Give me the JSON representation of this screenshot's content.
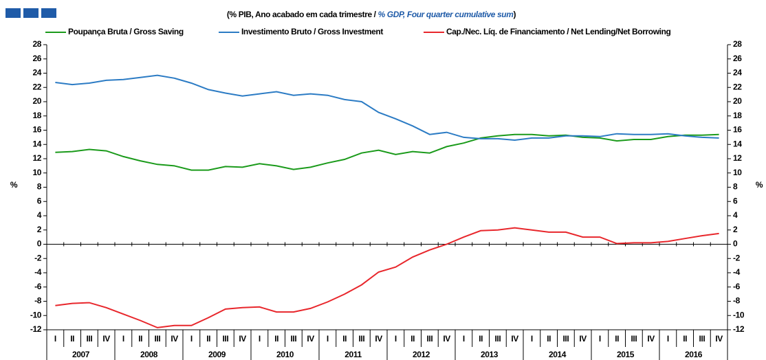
{
  "chart_data": {
    "type": "line",
    "title": "(% PIB, Ano acabado em cada trimestre / ",
    "title_en": "% GDP, Four quarter cumulative sum",
    "title_end": ")",
    "y_label": "%",
    "y2_label": "%",
    "categories": [
      "I",
      "II",
      "III",
      "IV",
      "I",
      "II",
      "III",
      "IV",
      "I",
      "II",
      "III",
      "IV",
      "I",
      "II",
      "III",
      "IV",
      "I",
      "II",
      "III",
      "IV",
      "I",
      "II",
      "III",
      "IV",
      "I",
      "II",
      "III",
      "IV",
      "I",
      "II",
      "III",
      "IV",
      "I",
      "II",
      "III",
      "IV",
      "I",
      "II",
      "III",
      "IV"
    ],
    "years": [
      "2007",
      "2008",
      "2009",
      "2010",
      "2011",
      "2012",
      "2013",
      "2014",
      "2015",
      "2016"
    ],
    "series": [
      {
        "name": "Poupança Bruta / Gross Saving",
        "color": "#1a9a1a",
        "values": [
          12.9,
          13.0,
          13.3,
          13.1,
          12.3,
          11.7,
          11.2,
          11.0,
          10.4,
          10.4,
          10.9,
          10.8,
          11.3,
          11.0,
          10.5,
          10.8,
          11.4,
          11.9,
          12.8,
          13.2,
          12.6,
          13.0,
          12.8,
          13.7,
          14.2,
          14.9,
          15.2,
          15.4,
          15.4,
          15.2,
          15.3,
          15.0,
          14.9,
          14.5,
          14.7,
          14.7,
          15.1,
          15.3,
          15.3,
          15.4
        ]
      },
      {
        "name": "Investimento Bruto / Gross Investment",
        "color": "#2b7bc4",
        "values": [
          22.7,
          22.4,
          22.6,
          23.0,
          23.1,
          23.4,
          23.7,
          23.3,
          22.6,
          21.7,
          21.2,
          20.8,
          21.1,
          21.4,
          20.9,
          21.1,
          20.9,
          20.3,
          20.0,
          18.5,
          17.6,
          16.6,
          15.4,
          15.7,
          15.0,
          14.8,
          14.8,
          14.6,
          14.9,
          14.9,
          15.2,
          15.2,
          15.1,
          15.5,
          15.4,
          15.4,
          15.5,
          15.2,
          15.0,
          14.9
        ]
      },
      {
        "name": "Cap./Nec. Líq. de Financiamento / Net Lending/Net Borrowing",
        "color": "#e8262b",
        "values": [
          -8.6,
          -8.3,
          -8.2,
          -8.9,
          -9.8,
          -10.7,
          -11.7,
          -11.4,
          -11.4,
          -10.3,
          -9.1,
          -8.9,
          -8.8,
          -9.5,
          -9.5,
          -9.0,
          -8.1,
          -7.0,
          -5.7,
          -3.9,
          -3.2,
          -1.8,
          -0.8,
          0.0,
          1.0,
          1.9,
          2.0,
          2.3,
          2.0,
          1.7,
          1.7,
          1.0,
          1.0,
          0.1,
          0.2,
          0.2,
          0.4,
          0.8,
          1.2,
          1.5
        ]
      }
    ],
    "ylim": [
      -12,
      28
    ],
    "yticks": [
      -12,
      -10,
      -8,
      -6,
      -4,
      -2,
      0,
      2,
      4,
      6,
      8,
      10,
      12,
      14,
      16,
      18,
      20,
      22,
      24,
      26,
      28
    ],
    "y2lim": [
      -12,
      28
    ],
    "y2ticks": [
      -12,
      -10,
      -8,
      -6,
      -4,
      -2,
      0,
      2,
      4,
      6,
      8,
      10,
      12,
      14,
      16,
      18,
      20,
      22,
      24,
      26,
      28
    ],
    "grid": false
  }
}
